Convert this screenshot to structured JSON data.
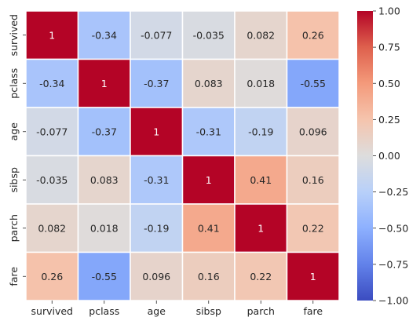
{
  "chart_data": {
    "type": "heatmap",
    "title": "",
    "xlabel": "",
    "ylabel": "",
    "categories_x": [
      "survived",
      "pclass",
      "age",
      "sibsp",
      "parch",
      "fare"
    ],
    "categories_y": [
      "survived",
      "pclass",
      "age",
      "sibsp",
      "parch",
      "fare"
    ],
    "values": [
      [
        1,
        -0.34,
        -0.077,
        -0.035,
        0.082,
        0.26
      ],
      [
        -0.34,
        1,
        -0.37,
        0.083,
        0.018,
        -0.55
      ],
      [
        -0.077,
        -0.37,
        1,
        -0.31,
        -0.19,
        0.096
      ],
      [
        -0.035,
        0.083,
        -0.31,
        1,
        0.41,
        0.16
      ],
      [
        0.082,
        0.018,
        -0.19,
        0.41,
        1,
        0.22
      ],
      [
        0.26,
        -0.55,
        0.096,
        0.16,
        0.22,
        1
      ]
    ],
    "cell_labels": [
      [
        "1",
        "-0.34",
        "-0.077",
        "-0.035",
        "0.082",
        "0.26"
      ],
      [
        "-0.34",
        "1",
        "-0.37",
        "0.083",
        "0.018",
        "-0.55"
      ],
      [
        "-0.077",
        "-0.37",
        "1",
        "-0.31",
        "-0.19",
        "0.096"
      ],
      [
        "-0.035",
        "0.083",
        "-0.31",
        "1",
        "0.41",
        "0.16"
      ],
      [
        "0.082",
        "0.018",
        "-0.19",
        "0.41",
        "1",
        "0.22"
      ],
      [
        "0.26",
        "-0.55",
        "0.096",
        "0.16",
        "0.22",
        "1"
      ]
    ],
    "colormap": "coolwarm",
    "vmin": -1.0,
    "vmax": 1.0,
    "colorbar": {
      "ticks": [
        1.0,
        0.75,
        0.5,
        0.25,
        0.0,
        -0.25,
        -0.5,
        -0.75,
        -1.0
      ],
      "tick_labels": [
        "1.00",
        "0.75",
        "0.50",
        "0.25",
        "0.00",
        "−0.25",
        "−0.50",
        "−0.75",
        "−1.00"
      ]
    },
    "colors": {
      "low": "#3b4cc0",
      "mid": "#dddddd",
      "high": "#b40426",
      "cell_border": "#ffffff"
    },
    "legend": "colorbar-right"
  }
}
